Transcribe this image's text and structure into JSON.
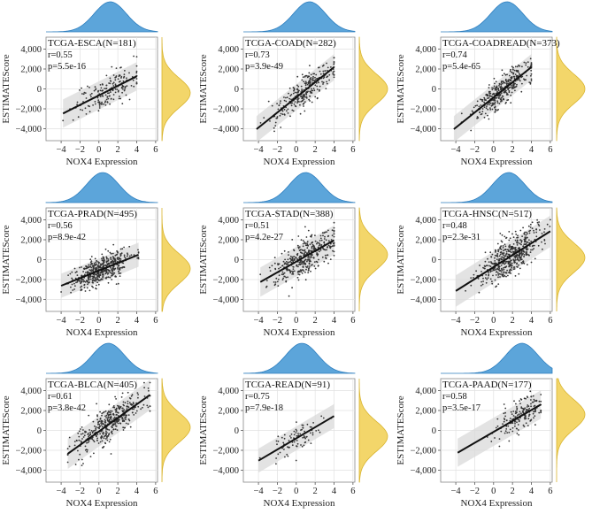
{
  "theme": {
    "top_density_color": "#4a9bd6",
    "right_density_color": "#f2d25a",
    "point_color": "#333333",
    "line_color": "#111111",
    "band_color": "#d9d9d9",
    "grid_color": "#e0e0e0"
  },
  "chart_data": [
    {
      "type": "scatter",
      "title": "TCGA-ESCA(N=181)",
      "r": "r=0.55",
      "p": "p=5.5e-16",
      "n": 181,
      "slope": 480,
      "intercept": -650,
      "xmin_data": -3.8,
      "xmax_data": 4.0,
      "xcenter": 0.8,
      "xspread": 1.7,
      "band": 1350,
      "xlabel": "NOX4 Expression",
      "ylabel": "ESTIMATEScore",
      "xlim": [
        -5.6,
        6.2
      ],
      "ylim": [
        -5200,
        5200
      ],
      "xticks": [
        "−4",
        "−2",
        "0",
        "2",
        "4",
        "6"
      ],
      "yticks": [
        "4,000",
        "2,000",
        "0",
        "−2,000",
        "−4,000"
      ],
      "top_peak": 1.2,
      "right_peak": -400
    },
    {
      "type": "scatter",
      "title": "TCGA-COAD(N=282)",
      "r": "r=0.73",
      "p": "p=3.9e-49",
      "n": 282,
      "slope": 760,
      "intercept": -850,
      "xmin_data": -4.2,
      "xmax_data": 4.0,
      "xcenter": 1.0,
      "xspread": 1.6,
      "band": 1250,
      "xlabel": "NOX4 Expression",
      "ylabel": "ESTIMATEScore",
      "xlim": [
        -5.6,
        6.2
      ],
      "ylim": [
        -5200,
        5200
      ],
      "xticks": [
        "−4",
        "−2",
        "0",
        "2",
        "4",
        "6"
      ],
      "yticks": [
        "4,000",
        "2,000",
        "0",
        "−2,000",
        "−4,000"
      ],
      "top_peak": 1.4,
      "right_peak": 0
    },
    {
      "type": "scatter",
      "title": "TCGA-COADREAD(N=373)",
      "r": "r=0.74",
      "p": "p=5.4e-65",
      "n": 373,
      "slope": 760,
      "intercept": -850,
      "xmin_data": -4.2,
      "xmax_data": 4.0,
      "xcenter": 1.0,
      "xspread": 1.6,
      "band": 1250,
      "xlabel": "NOX4 Expression",
      "ylabel": "ESTIMATEScore",
      "xlim": [
        -5.6,
        6.2
      ],
      "ylim": [
        -5200,
        5200
      ],
      "xticks": [
        "−4",
        "−2",
        "0",
        "2",
        "4",
        "6"
      ],
      "yticks": [
        "4,000",
        "2,000",
        "0",
        "−2,000",
        "−4,000"
      ],
      "top_peak": 1.4,
      "right_peak": 0
    },
    {
      "type": "scatter",
      "title": "TCGA-PRAD(N=495)",
      "r": "r=0.56",
      "p": "p=8.9e-42",
      "n": 495,
      "slope": 380,
      "intercept": -1100,
      "xmin_data": -4.0,
      "xmax_data": 4.2,
      "xcenter": 0.3,
      "xspread": 1.5,
      "band": 1150,
      "xlabel": "NOX4 Expression",
      "ylabel": "ESTIMATEScore",
      "xlim": [
        -5.6,
        6.2
      ],
      "ylim": [
        -5200,
        5200
      ],
      "xticks": [
        "−4",
        "−2",
        "0",
        "2",
        "4",
        "6"
      ],
      "yticks": [
        "4,000",
        "2,000",
        "0",
        "−2,000",
        "−4,000"
      ],
      "top_peak": 0.4,
      "right_peak": -900
    },
    {
      "type": "scatter",
      "title": "TCGA-STAD(N=388)",
      "r": "r=0.51",
      "p": "p=4.2e-27",
      "n": 388,
      "slope": 540,
      "intercept": -200,
      "xmin_data": -3.8,
      "xmax_data": 4.0,
      "xcenter": 0.9,
      "xspread": 1.7,
      "band": 1400,
      "xlabel": "NOX4 Expression",
      "ylabel": "ESTIMATEScore",
      "xlim": [
        -5.6,
        6.2
      ],
      "ylim": [
        -5200,
        5200
      ],
      "xticks": [
        "−4",
        "−2",
        "0",
        "2",
        "4",
        "6"
      ],
      "yticks": [
        "4,000",
        "2,000",
        "0",
        "−2,000",
        "−4,000"
      ],
      "top_peak": 1.0,
      "right_peak": 500
    },
    {
      "type": "scatter",
      "title": "TCGA-HNSC(N=517)",
      "r": "r=0.48",
      "p": "p=2.3e-31",
      "n": 517,
      "slope": 600,
      "intercept": -750,
      "xmin_data": -4.0,
      "xmax_data": 6.0,
      "xcenter": 1.6,
      "xspread": 1.6,
      "band": 1500,
      "xlabel": "NOX4 Expression",
      "ylabel": "ESTIMATEScore",
      "xlim": [
        -5.6,
        6.2
      ],
      "ylim": [
        -5200,
        5200
      ],
      "xticks": [
        "−4",
        "−2",
        "0",
        "2",
        "4",
        "6"
      ],
      "yticks": [
        "4,000",
        "2,000",
        "0",
        "−2,000",
        "−4,000"
      ],
      "top_peak": 1.6,
      "right_peak": 200
    },
    {
      "type": "scatter",
      "title": "TCGA-BLCA(N=405)",
      "r": "r=0.61",
      "p": "p=3.8e-42",
      "n": 405,
      "slope": 680,
      "intercept": -100,
      "xmin_data": -3.3,
      "xmax_data": 5.4,
      "xcenter": 0.9,
      "xspread": 1.9,
      "band": 1450,
      "xlabel": "NOX4 Expression",
      "ylabel": "ESTIMATEScore",
      "xlim": [
        -5.6,
        6.2
      ],
      "ylim": [
        -5200,
        5200
      ],
      "xticks": [
        "−4",
        "−2",
        "0",
        "2",
        "4",
        "6"
      ],
      "yticks": [
        "4,000",
        "2,000",
        "0",
        "−2,000",
        "−4,000"
      ],
      "top_peak": 1.0,
      "right_peak": 300
    },
    {
      "type": "scatter",
      "title": "TCGA-READ(N=91)",
      "r": "r=0.75",
      "p": "p=7.9e-18",
      "n": 91,
      "slope": 560,
      "intercept": -800,
      "xmin_data": -4.0,
      "xmax_data": 4.0,
      "xcenter": 0.4,
      "xspread": 1.6,
      "band": 1150,
      "xlabel": "NOX4 Expression",
      "ylabel": "ESTIMATEScore",
      "xlim": [
        -5.6,
        6.2
      ],
      "ylim": [
        -5200,
        5200
      ],
      "xticks": [
        "−4",
        "−2",
        "0",
        "2",
        "4",
        "6"
      ],
      "yticks": [
        "4,000",
        "2,000",
        "0",
        "−2,000",
        "−4,000"
      ],
      "top_peak": 0.6,
      "right_peak": -600
    },
    {
      "type": "scatter",
      "title": "TCGA-PAAD(N=177)",
      "r": "r=0.58",
      "p": "p=3.5e-17",
      "n": 177,
      "slope": 550,
      "intercept": -150,
      "xmin_data": -3.8,
      "xmax_data": 5.0,
      "xcenter": 2.8,
      "xspread": 1.3,
      "band": 1350,
      "xlabel": "NOX4 Expression",
      "ylabel": "ESTIMATEScore",
      "xlim": [
        -5.6,
        6.2
      ],
      "ylim": [
        -5200,
        5200
      ],
      "xticks": [
        "−4",
        "−2",
        "0",
        "2",
        "4",
        "6"
      ],
      "yticks": [
        "4,000",
        "2,000",
        "0",
        "−2,000",
        "−4,000"
      ],
      "top_peak": 3.0,
      "right_peak": 1600
    }
  ]
}
